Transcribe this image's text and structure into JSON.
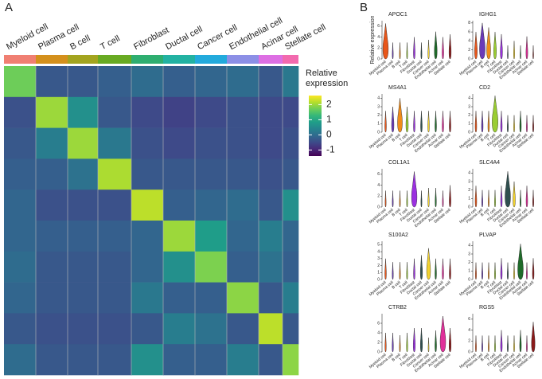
{
  "chart_data": [
    {
      "type": "heatmap",
      "panel_label": "A",
      "categories": [
        "Myeloid cell",
        "Plasma cell",
        "B cell",
        "T cell",
        "Fibroblast",
        "Ductal cell",
        "Cancer cell",
        "Endothelial cell",
        "Acinar cell",
        "Stellate cell"
      ],
      "colors": [
        "#f07f72",
        "#d4901c",
        "#a3a41f",
        "#68aa22",
        "#2eae70",
        "#22b2a2",
        "#22aadc",
        "#8c8fe6",
        "#dd6fe3",
        "#f26aae"
      ],
      "colorbar_title": "Relative expression",
      "clim": [
        -1.4,
        2.6
      ],
      "colorbar_ticks": [
        2,
        1,
        0,
        -1
      ],
      "values": [
        [
          1.7,
          -0.3,
          -0.3,
          -0.2,
          0.0,
          -0.2,
          -0.1,
          0.0,
          -0.3,
          0.2
        ],
        [
          -0.4,
          2.0,
          0.6,
          -0.3,
          -0.5,
          -0.6,
          -0.5,
          -0.4,
          -0.5,
          -0.5
        ],
        [
          -0.3,
          0.3,
          2.0,
          0.2,
          -0.4,
          -0.5,
          -0.4,
          -0.4,
          -0.5,
          -0.4
        ],
        [
          -0.2,
          -0.2,
          0.1,
          2.1,
          -0.3,
          -0.3,
          -0.3,
          -0.3,
          -0.4,
          -0.3
        ],
        [
          -0.1,
          -0.4,
          -0.4,
          -0.4,
          2.2,
          -0.2,
          -0.1,
          0.0,
          -0.3,
          0.6
        ],
        [
          -0.1,
          -0.2,
          -0.2,
          -0.2,
          -0.1,
          2.0,
          0.8,
          -0.1,
          0.3,
          -0.1
        ],
        [
          0.0,
          -0.3,
          -0.3,
          -0.3,
          -0.1,
          0.6,
          1.8,
          -0.2,
          0.1,
          -0.2
        ],
        [
          -0.1,
          -0.3,
          -0.3,
          -0.3,
          0.2,
          -0.2,
          -0.2,
          1.9,
          -0.3,
          0.3
        ],
        [
          -0.3,
          -0.4,
          -0.4,
          -0.4,
          -0.3,
          0.3,
          0.1,
          -0.3,
          2.2,
          -0.3
        ],
        [
          0.0,
          -0.3,
          -0.3,
          -0.3,
          0.6,
          -0.2,
          -0.2,
          0.3,
          -0.3,
          1.9
        ]
      ]
    },
    {
      "type": "violin",
      "panel_label": "B",
      "title": "APOC1",
      "ylabel": "Relative expression",
      "categories": [
        "Myeloid cell",
        "Plasma cell",
        "B cell",
        "T cell",
        "Fibroblast",
        "Ductal cell",
        "Cancer cell",
        "Endothelial cell",
        "Acinar cell",
        "Stellate cell"
      ],
      "colors": [
        "#e8561a",
        "#6a3ab8",
        "#f08c1a",
        "#9acd32",
        "#9b30e0",
        "#2f4f4f",
        "#f2d22e",
        "#1f6b2a",
        "#e0309a",
        "#8b1a1a"
      ],
      "ylim": [
        0,
        7
      ],
      "yticks": [
        0,
        2,
        4,
        6
      ],
      "values": [
        6.5,
        3,
        3,
        3,
        4,
        3,
        3.5,
        5,
        4,
        4.5
      ]
    },
    {
      "type": "violin",
      "title": "IGHG1",
      "categories": [
        "Myeloid cell",
        "Plasma cell",
        "B cell",
        "T cell",
        "Fibroblast",
        "Ductal cell",
        "Cancer cell",
        "Endothelial cell",
        "Acinar cell",
        "Stellate cell"
      ],
      "colors": [
        "#e8561a",
        "#6a3ab8",
        "#f08c1a",
        "#9acd32",
        "#9b30e0",
        "#2f4f4f",
        "#f2d22e",
        "#1f6b2a",
        "#e0309a",
        "#8b1a1a"
      ],
      "ylim": [
        0,
        8.5
      ],
      "yticks": [
        0,
        2,
        4,
        6,
        8
      ],
      "values": [
        6,
        8,
        7,
        6,
        5.5,
        3,
        4,
        3,
        5,
        3
      ]
    },
    {
      "type": "violin",
      "title": "MS4A1",
      "categories": [
        "Myeloid cell",
        "Plasma cell",
        "B cell",
        "T cell",
        "Fibroblast",
        "Ductal cell",
        "Cancer cell",
        "Endothelial cell",
        "Acinar cell",
        "Stellate cell"
      ],
      "colors": [
        "#e8561a",
        "#6a3ab8",
        "#f08c1a",
        "#9acd32",
        "#9b30e0",
        "#2f4f4f",
        "#f2d22e",
        "#1f6b2a",
        "#e0309a",
        "#8b1a1a"
      ],
      "ylim": [
        0,
        4.5
      ],
      "yticks": [
        0,
        1,
        2,
        3,
        4
      ],
      "values": [
        2.5,
        3,
        4,
        3,
        2.5,
        2.5,
        2.5,
        2.5,
        2.5,
        2.5
      ]
    },
    {
      "type": "violin",
      "title": "CD2",
      "categories": [
        "Myeloid cell",
        "Plasma cell",
        "B cell",
        "T cell",
        "Fibroblast",
        "Ductal cell",
        "Cancer cell",
        "Endothelial cell",
        "Acinar cell",
        "Stellate cell"
      ],
      "colors": [
        "#e8561a",
        "#6a3ab8",
        "#f08c1a",
        "#9acd32",
        "#9b30e0",
        "#2f4f4f",
        "#f2d22e",
        "#1f6b2a",
        "#e0309a",
        "#8b1a1a"
      ],
      "ylim": [
        0,
        4.5
      ],
      "yticks": [
        0,
        1,
        2,
        3,
        4
      ],
      "values": [
        2.5,
        2.5,
        2.5,
        4.3,
        2.5,
        2,
        2,
        2.5,
        2,
        2
      ]
    },
    {
      "type": "violin",
      "title": "COL1A1",
      "categories": [
        "Myeloid cell",
        "Plasma cell",
        "B cell",
        "T cell",
        "Fibroblast",
        "Ductal cell",
        "Cancer cell",
        "Endothelial cell",
        "Acinar cell",
        "Stellate cell"
      ],
      "colors": [
        "#e8561a",
        "#6a3ab8",
        "#f08c1a",
        "#9acd32",
        "#9b30e0",
        "#2f4f4f",
        "#f2d22e",
        "#1f6b2a",
        "#e0309a",
        "#8b1a1a"
      ],
      "ylim": [
        0,
        7
      ],
      "yticks": [
        0,
        2,
        4,
        6
      ],
      "values": [
        3,
        3,
        3,
        3,
        6.5,
        3,
        3.5,
        3.5,
        3,
        4
      ]
    },
    {
      "type": "violin",
      "title": "SLC4A4",
      "categories": [
        "Myeloid cell",
        "Plasma cell",
        "B cell",
        "T cell",
        "Fibroblast",
        "Ductal cell",
        "Cancer cell",
        "Endothelial cell",
        "Acinar cell",
        "Stellate cell"
      ],
      "colors": [
        "#e8561a",
        "#6a3ab8",
        "#f08c1a",
        "#9acd32",
        "#9b30e0",
        "#2f4f4f",
        "#f2d22e",
        "#1f6b2a",
        "#e0309a",
        "#8b1a1a"
      ],
      "ylim": [
        0,
        4.5
      ],
      "yticks": [
        0,
        1,
        2,
        3,
        4
      ],
      "values": [
        2.5,
        2,
        2,
        2,
        2.5,
        4.2,
        3,
        2,
        2.5,
        2
      ]
    },
    {
      "type": "violin",
      "title": "S100A2",
      "categories": [
        "Myeloid cell",
        "Plasma cell",
        "B cell",
        "T cell",
        "Fibroblast",
        "Ductal cell",
        "Cancer cell",
        "Endothelial cell",
        "Acinar cell",
        "Stellate cell"
      ],
      "colors": [
        "#e8561a",
        "#6a3ab8",
        "#f08c1a",
        "#9acd32",
        "#9b30e0",
        "#2f4f4f",
        "#f2d22e",
        "#1f6b2a",
        "#e0309a",
        "#8b1a1a"
      ],
      "ylim": [
        0,
        5.5
      ],
      "yticks": [
        0,
        1,
        2,
        3,
        4,
        5
      ],
      "values": [
        3,
        2.5,
        2.5,
        2.5,
        3,
        3.5,
        4.5,
        3,
        3,
        3
      ]
    },
    {
      "type": "violin",
      "title": "PLVAP",
      "categories": [
        "Myeloid cell",
        "Plasma cell",
        "B cell",
        "T cell",
        "Fibroblast",
        "Ductal cell",
        "Cancer cell",
        "Endothelial cell",
        "Acinar cell",
        "Stellate cell"
      ],
      "colors": [
        "#e8561a",
        "#6a3ab8",
        "#f08c1a",
        "#9acd32",
        "#9b30e0",
        "#2f4f4f",
        "#f2d22e",
        "#1f6b2a",
        "#e0309a",
        "#8b1a1a"
      ],
      "ylim": [
        0,
        4.5
      ],
      "yticks": [
        0,
        1,
        2,
        3,
        4
      ],
      "values": [
        2,
        2,
        2,
        2,
        2.5,
        2,
        2,
        4.2,
        2,
        2.5
      ]
    },
    {
      "type": "violin",
      "title": "CTRB2",
      "categories": [
        "Myeloid cell",
        "Plasma cell",
        "B cell",
        "T cell",
        "Fibroblast",
        "Ductal cell",
        "Cancer cell",
        "Endothelial cell",
        "Acinar cell",
        "Stellate cell"
      ],
      "colors": [
        "#e8561a",
        "#6a3ab8",
        "#f08c1a",
        "#9acd32",
        "#9b30e0",
        "#2f4f4f",
        "#f2d22e",
        "#1f6b2a",
        "#e0309a",
        "#8b1a1a"
      ],
      "ylim": [
        0,
        8
      ],
      "yticks": [
        0,
        2,
        4,
        6
      ],
      "values": [
        4,
        4,
        3.5,
        4,
        5,
        5,
        3,
        4.5,
        7.5,
        5
      ]
    },
    {
      "type": "violin",
      "title": "RGS5",
      "categories": [
        "Myeloid cell",
        "Plasma cell",
        "B cell",
        "T cell",
        "Fibroblast",
        "Ductal cell",
        "Cancer cell",
        "Endothelial cell",
        "Acinar cell",
        "Stellate cell"
      ],
      "colors": [
        "#e8561a",
        "#6a3ab8",
        "#f08c1a",
        "#9acd32",
        "#9b30e0",
        "#2f4f4f",
        "#f2d22e",
        "#1f6b2a",
        "#e0309a",
        "#8b1a1a"
      ],
      "ylim": [
        0,
        7
      ],
      "yticks": [
        0,
        2,
        4,
        6
      ],
      "values": [
        3,
        3,
        3,
        3,
        4,
        3,
        3,
        4,
        3,
        5.5
      ]
    }
  ]
}
